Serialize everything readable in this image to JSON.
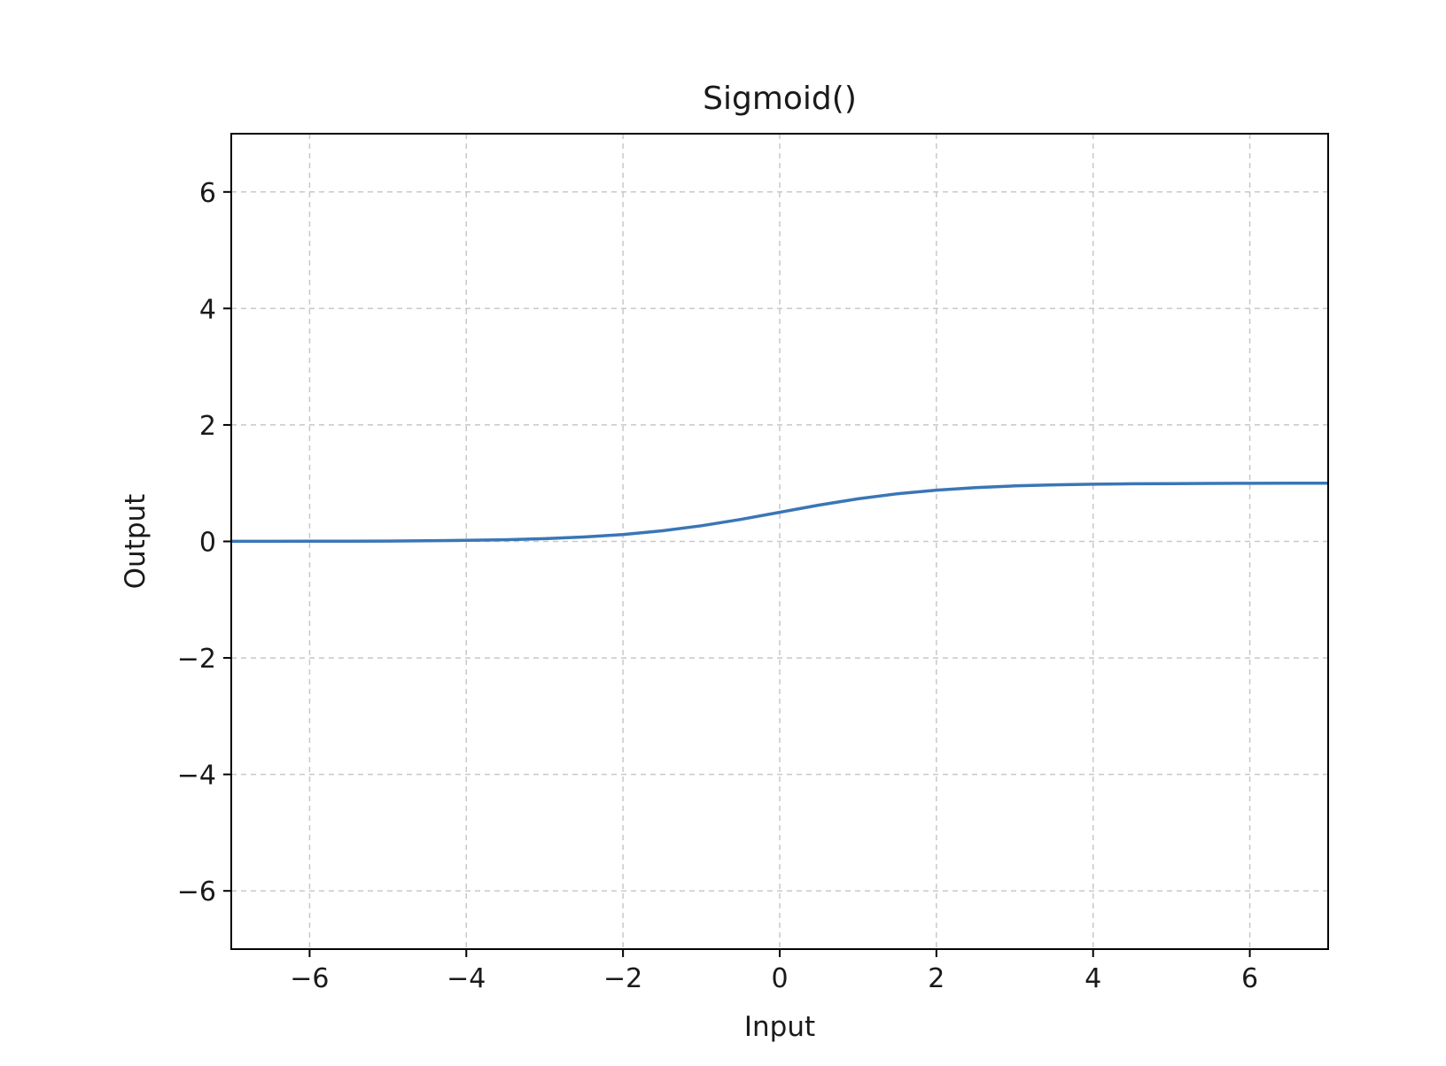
{
  "chart_data": {
    "type": "line",
    "title": "Sigmoid()",
    "xlabel": "Input",
    "ylabel": "Output",
    "xlim": [
      -7,
      7
    ],
    "ylim": [
      -7,
      7
    ],
    "xticks": [
      -6,
      -4,
      -2,
      0,
      2,
      4,
      6
    ],
    "yticks": [
      -6,
      -4,
      -2,
      0,
      2,
      4,
      6
    ],
    "xtick_labels": [
      "−6",
      "−4",
      "−2",
      "0",
      "2",
      "4",
      "6"
    ],
    "ytick_labels": [
      "−6",
      "−4",
      "−2",
      "0",
      "2",
      "4",
      "6"
    ],
    "grid": true,
    "legend": "none",
    "line_color": "#3a76b6",
    "grid_color": "#c8c8c8",
    "series": [
      {
        "x": [
          -7,
          -6.5,
          -6,
          -5.5,
          -5,
          -4.5,
          -4,
          -3.5,
          -3,
          -2.5,
          -2,
          -1.5,
          -1,
          -0.5,
          0,
          0.5,
          1,
          1.5,
          2,
          2.5,
          3,
          3.5,
          4,
          4.5,
          5,
          5.5,
          6,
          6.5,
          7
        ],
        "y": [
          0.0009,
          0.0015,
          0.0025,
          0.0041,
          0.0067,
          0.011,
          0.018,
          0.0293,
          0.0474,
          0.0759,
          0.1192,
          0.1824,
          0.2689,
          0.3775,
          0.5,
          0.6225,
          0.7311,
          0.8176,
          0.8808,
          0.9241,
          0.9526,
          0.9707,
          0.982,
          0.989,
          0.9933,
          0.9959,
          0.9975,
          0.9985,
          0.9991
        ]
      }
    ]
  }
}
